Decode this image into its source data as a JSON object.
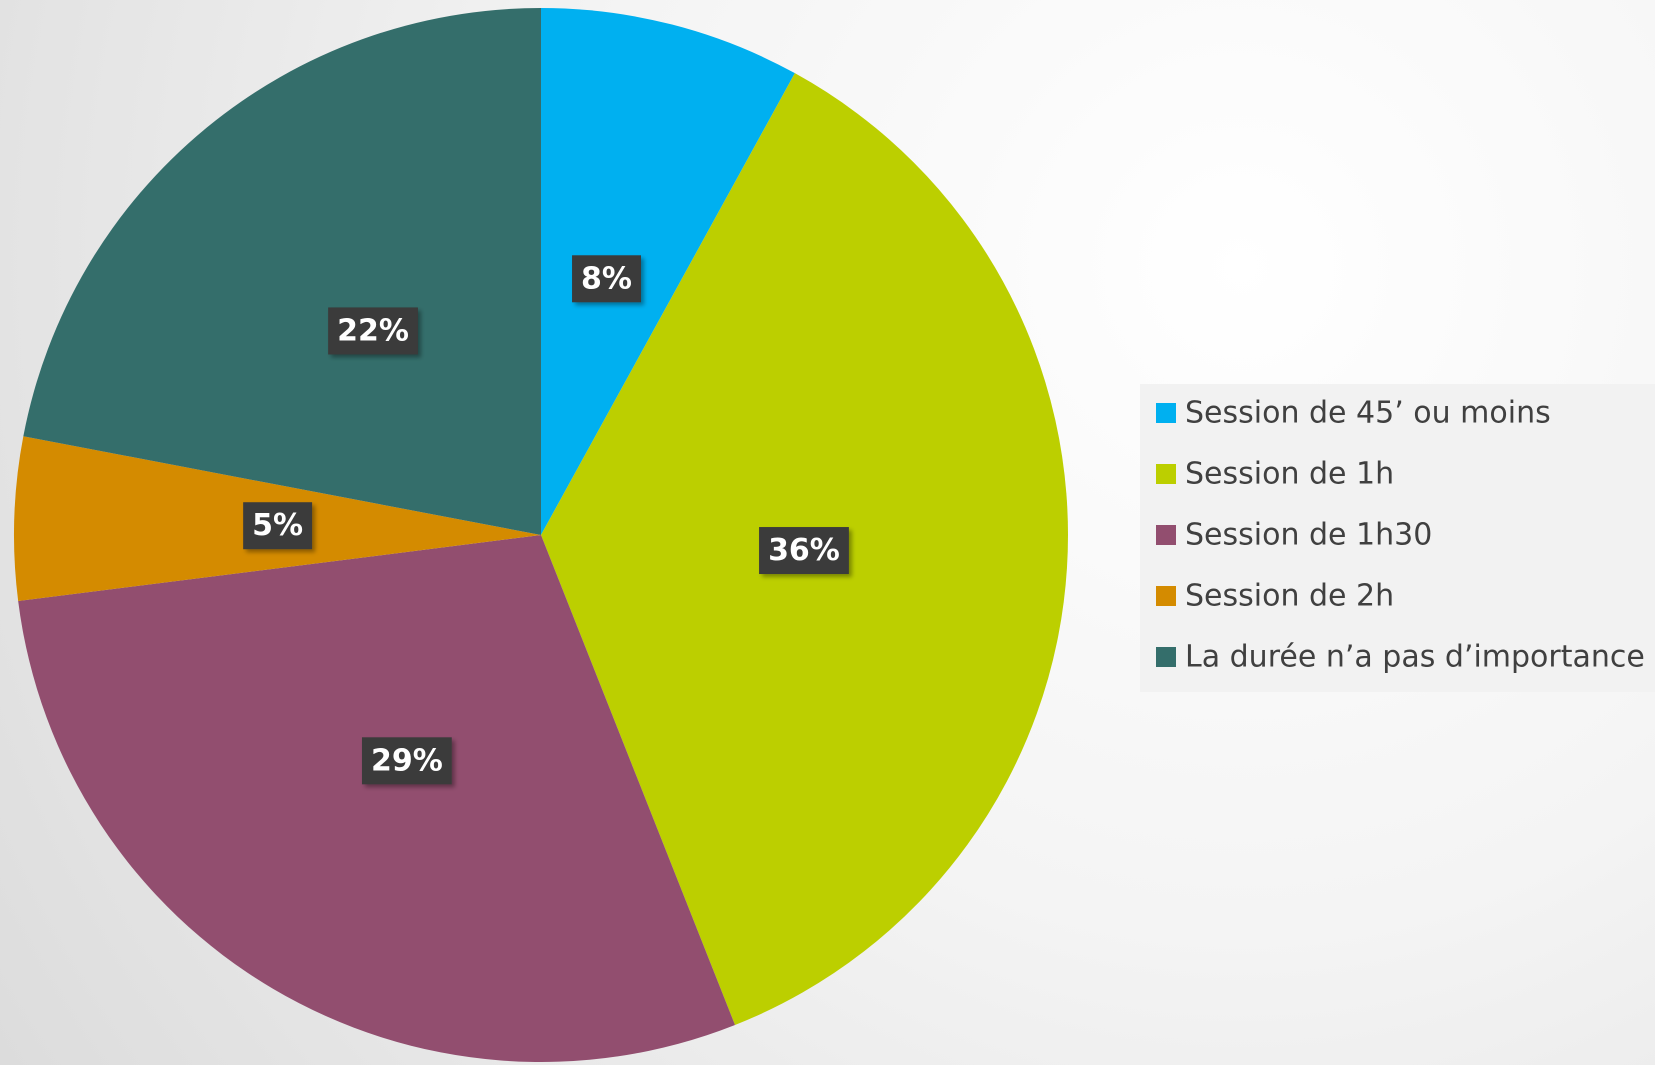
{
  "chart_data": {
    "type": "pie",
    "categories": [
      "Session de 45’ ou moins",
      "Session de 1h",
      "Session de 1h30",
      "Session de 2h",
      "La durée n’a pas d’importance"
    ],
    "values": [
      8,
      36,
      29,
      5,
      22
    ],
    "value_labels": [
      "8%",
      "36%",
      "29%",
      "5%",
      "22%"
    ],
    "colors": [
      "#00b0f0",
      "#bccf00",
      "#924e6f",
      "#d48b00",
      "#346e6b"
    ],
    "legend": "right"
  }
}
